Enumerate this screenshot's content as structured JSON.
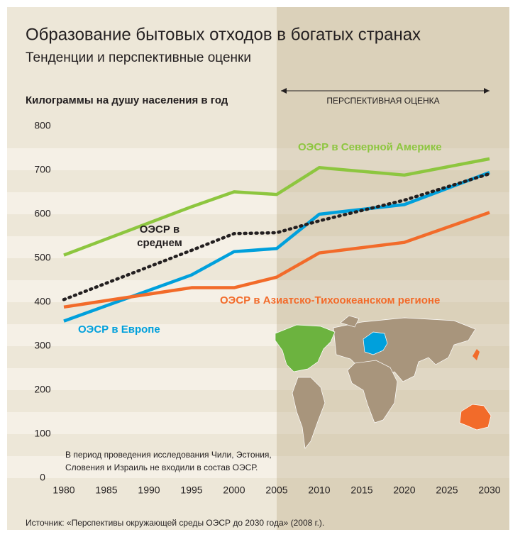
{
  "chart_data": {
    "type": "line",
    "title": "Образование бытовых отходов в богатых странах",
    "subtitle": "Тенденции и перспективные оценки",
    "y_label": "Килограммы на душу населения в год",
    "projection_label": "ПЕРСПЕКТИВНАЯ ОЦЕНКА",
    "projection_start": 2005,
    "note": "В период проведения исследования Чили, Эстония, Словения и Израиль не входили в состав ОЭСР.",
    "source": "Источник: «Перспективы  окружающей среды ОЭСР до 2030 года» (2008 г.).",
    "x": [
      1980,
      1995,
      2000,
      2005,
      2010,
      2020,
      2030
    ],
    "series": [
      {
        "name": "ОЭСР в Северной Америке",
        "color": "#8dc63f",
        "dash": false,
        "values": [
          507,
          617,
          651,
          645,
          706,
          689,
          726
        ]
      },
      {
        "name": "ОЭСР в Европе",
        "color": "#00a0dc",
        "dash": false,
        "values": [
          357,
          462,
          515,
          522,
          600,
          622,
          695
        ]
      },
      {
        "name": "ОЭСР в Азиатско-Тихоокеанском регионе",
        "color": "#f26b2a",
        "dash": false,
        "values": [
          389,
          433,
          433,
          457,
          512,
          536,
          604
        ]
      },
      {
        "name": "ОЭСР в среднем",
        "color": "#231f20",
        "dash": true,
        "values": [
          406,
          518,
          556,
          558,
          585,
          632,
          692
        ]
      }
    ],
    "xlim": [
      1980,
      2030
    ],
    "ylim": [
      0,
      800
    ],
    "xticks": [
      1980,
      1985,
      1990,
      1995,
      2000,
      2005,
      2010,
      2015,
      2020,
      2025,
      2030
    ],
    "yticks": [
      0,
      100,
      200,
      300,
      400,
      500,
      600,
      700,
      800
    ],
    "grid": false
  }
}
